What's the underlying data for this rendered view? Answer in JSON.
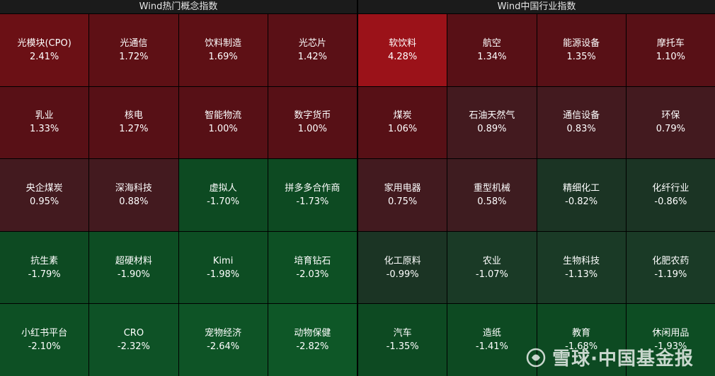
{
  "panels": [
    {
      "title": "Wind热门概念指数",
      "tiles": [
        {
          "name": "光模块(CPO)",
          "pct": "2.41%",
          "color": "#6b1015"
        },
        {
          "name": "光通信",
          "pct": "1.72%",
          "color": "#5e1015"
        },
        {
          "name": "饮料制造",
          "pct": "1.69%",
          "color": "#5e1015"
        },
        {
          "name": "光芯片",
          "pct": "1.42%",
          "color": "#5a1016"
        },
        {
          "name": "乳业",
          "pct": "1.33%",
          "color": "#581016"
        },
        {
          "name": "核电",
          "pct": "1.27%",
          "color": "#571016"
        },
        {
          "name": "智能物流",
          "pct": "1.00%",
          "color": "#571016"
        },
        {
          "name": "数字货币",
          "pct": "1.00%",
          "color": "#571016"
        },
        {
          "name": "央企煤炭",
          "pct": "0.95%",
          "color": "#431a1f"
        },
        {
          "name": "深海科技",
          "pct": "0.88%",
          "color": "#431a1f"
        },
        {
          "name": "虚拟人",
          "pct": "-1.70%",
          "color": "#0d4a22"
        },
        {
          "name": "拼多多合作商",
          "pct": "-1.73%",
          "color": "#0d4a22"
        },
        {
          "name": "抗生素",
          "pct": "-1.79%",
          "color": "#0d4a22"
        },
        {
          "name": "超硬材料",
          "pct": "-1.90%",
          "color": "#0d4d23"
        },
        {
          "name": "Kimi",
          "pct": "-1.98%",
          "color": "#0d4d23"
        },
        {
          "name": "培育钻石",
          "pct": "-2.03%",
          "color": "#0d5024"
        },
        {
          "name": "小红书平台",
          "pct": "-2.10%",
          "color": "#0d5024"
        },
        {
          "name": "CRO",
          "pct": "-2.32%",
          "color": "#0e5226"
        },
        {
          "name": "宠物经济",
          "pct": "-2.64%",
          "color": "#0e5426"
        },
        {
          "name": "动物保健",
          "pct": "-2.82%",
          "color": "#0e5727"
        }
      ]
    },
    {
      "title": "Wind中国行业指数",
      "tiles": [
        {
          "name": "软饮料",
          "pct": "4.28%",
          "color": "#9b1219"
        },
        {
          "name": "航空",
          "pct": "1.34%",
          "color": "#581016"
        },
        {
          "name": "能源设备",
          "pct": "1.35%",
          "color": "#581016"
        },
        {
          "name": "摩托车",
          "pct": "1.10%",
          "color": "#581016"
        },
        {
          "name": "煤炭",
          "pct": "1.06%",
          "color": "#571016"
        },
        {
          "name": "石油天然气",
          "pct": "0.89%",
          "color": "#431a1f"
        },
        {
          "name": "通信设备",
          "pct": "0.83%",
          "color": "#431a1f"
        },
        {
          "name": "环保",
          "pct": "0.79%",
          "color": "#431a1f"
        },
        {
          "name": "家用电器",
          "pct": "0.75%",
          "color": "#421a1f"
        },
        {
          "name": "重型机械",
          "pct": "0.58%",
          "color": "#3e1c20"
        },
        {
          "name": "精细化工",
          "pct": "-0.82%",
          "color": "#1b3424"
        },
        {
          "name": "化纤行业",
          "pct": "-0.86%",
          "color": "#1b3424"
        },
        {
          "name": "化工原料",
          "pct": "-0.99%",
          "color": "#1b3424"
        },
        {
          "name": "农业",
          "pct": "-1.07%",
          "color": "#1a3a26"
        },
        {
          "name": "生物科技",
          "pct": "-1.13%",
          "color": "#1a3a26"
        },
        {
          "name": "化肥农药",
          "pct": "-1.19%",
          "color": "#1a3a26"
        },
        {
          "name": "汽车",
          "pct": "-1.35%",
          "color": "#0d4a22"
        },
        {
          "name": "造纸",
          "pct": "-1.41%",
          "color": "#0d4a22"
        },
        {
          "name": "教育",
          "pct": "-1.68%",
          "color": "#0d4a22"
        },
        {
          "name": "休闲用品",
          "pct": "-1.93%",
          "color": "#0d4d23"
        }
      ]
    }
  ],
  "watermark": {
    "text": "雪球·中国基金报",
    "icon": "xueqiu-logo-icon"
  }
}
